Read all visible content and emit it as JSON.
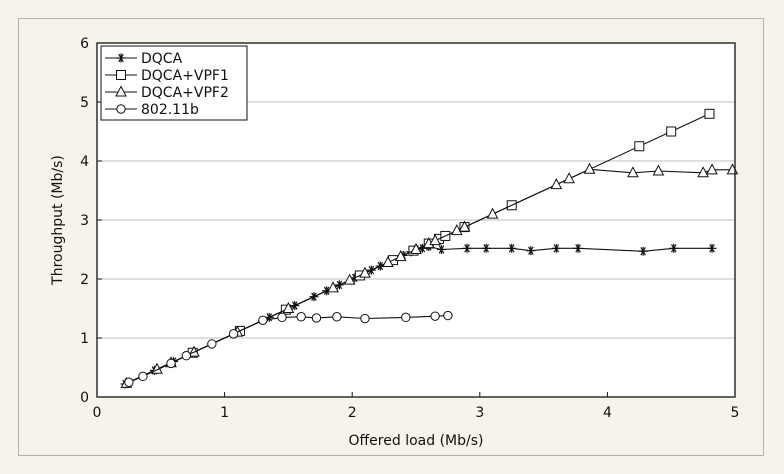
{
  "chart_data": {
    "type": "line",
    "title": "",
    "xlabel": "Offered load (Mb/s)",
    "ylabel": "Throughput (Mb/s)",
    "xlim": [
      0,
      5
    ],
    "ylim": [
      0,
      6
    ],
    "xticks": [
      "0",
      "1",
      "2",
      "3",
      "4",
      "5"
    ],
    "yticks": [
      "0",
      "1",
      "2",
      "3",
      "4",
      "5",
      "6"
    ],
    "grid": "horizontal",
    "legend": "top-left",
    "series": [
      {
        "name": "DQCA",
        "marker": "asterisk",
        "x": [
          0.22,
          0.45,
          0.6,
          0.75,
          1.1,
          1.35,
          1.55,
          1.7,
          1.8,
          1.9,
          2.02,
          2.15,
          2.22,
          2.32,
          2.4,
          2.46,
          2.5,
          2.55,
          2.6,
          2.7,
          2.9,
          3.05,
          3.25,
          3.4,
          3.6,
          3.77,
          4.28,
          4.52,
          4.82
        ],
        "y": [
          0.22,
          0.45,
          0.6,
          0.75,
          1.1,
          1.35,
          1.55,
          1.7,
          1.8,
          1.9,
          2.02,
          2.15,
          2.22,
          2.32,
          2.4,
          2.46,
          2.5,
          2.52,
          2.55,
          2.5,
          2.52,
          2.52,
          2.52,
          2.48,
          2.52,
          2.52,
          2.47,
          2.52,
          2.52
        ]
      },
      {
        "name": "DQCA+VPF1",
        "marker": "square",
        "x": [
          0.75,
          1.12,
          1.48,
          2.06,
          2.32,
          2.48,
          2.6,
          2.68,
          2.73,
          2.88,
          3.25,
          4.25,
          4.5,
          4.8
        ],
        "y": [
          0.75,
          1.12,
          1.48,
          2.06,
          2.32,
          2.48,
          2.6,
          2.68,
          2.73,
          2.88,
          3.25,
          4.25,
          4.5,
          4.8
        ]
      },
      {
        "name": "DQCA+VPF2",
        "marker": "triangle",
        "x": [
          0.23,
          0.47,
          0.58,
          0.76,
          1.1,
          1.5,
          1.85,
          1.98,
          2.1,
          2.28,
          2.38,
          2.5,
          2.6,
          2.65,
          2.82,
          2.88,
          3.1,
          3.6,
          3.7,
          3.86,
          4.2,
          4.4,
          4.75,
          4.82,
          4.98
        ],
        "y": [
          0.23,
          0.47,
          0.58,
          0.76,
          1.1,
          1.5,
          1.85,
          1.98,
          2.1,
          2.28,
          2.38,
          2.5,
          2.6,
          2.65,
          2.82,
          2.88,
          3.1,
          3.6,
          3.7,
          3.86,
          3.8,
          3.83,
          3.8,
          3.85,
          3.85
        ]
      },
      {
        "name": "802.11b",
        "marker": "circle",
        "x": [
          0.25,
          0.36,
          0.58,
          0.7,
          0.9,
          1.07,
          1.3,
          1.45,
          1.6,
          1.72,
          1.88,
          2.1,
          2.42,
          2.65,
          2.75
        ],
        "y": [
          0.25,
          0.35,
          0.57,
          0.7,
          0.9,
          1.07,
          1.3,
          1.35,
          1.36,
          1.34,
          1.36,
          1.33,
          1.35,
          1.37,
          1.38
        ]
      }
    ],
    "colors": {
      "frame_bg": "#f7f3ea",
      "plot_bg": "#ffffff",
      "ink": "#111111",
      "grid": "#bfbfbf"
    }
  }
}
